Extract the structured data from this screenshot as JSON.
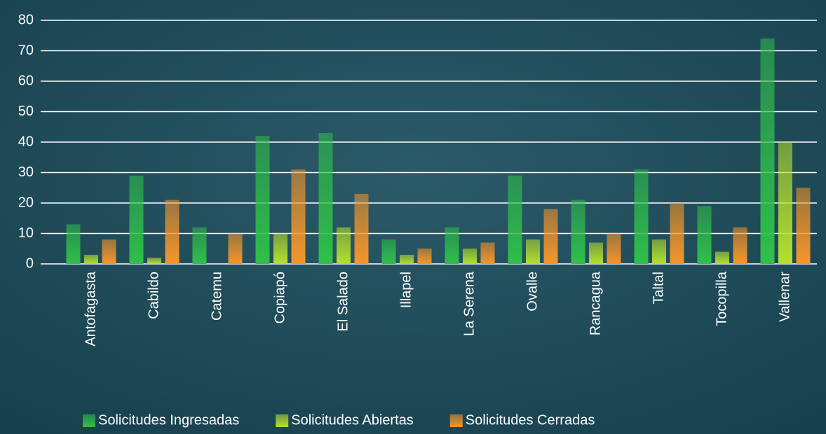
{
  "chart_data": {
    "type": "bar",
    "categories": [
      "Antofagasta",
      "Cabildo",
      "Catemu",
      "Copiapó",
      "El Salado",
      "Illapel",
      "La Serena",
      "Ovalle",
      "Rancagua",
      "Taltal",
      "Tocopilla",
      "Vallenar"
    ],
    "series": [
      {
        "name": "Solicitudes Ingresadas",
        "color": "#2fc04a",
        "values": [
          13,
          29,
          12,
          42,
          43,
          8,
          12,
          29,
          21,
          31,
          19,
          74
        ]
      },
      {
        "name": "Solicitudes Abiertas",
        "color": "#b5e02e",
        "values": [
          3,
          2,
          0,
          10,
          12,
          3,
          5,
          8,
          7,
          8,
          4,
          40
        ]
      },
      {
        "name": "Solicitudes Cerradas",
        "color": "#f7962a",
        "values": [
          8,
          21,
          10,
          31,
          23,
          5,
          7,
          18,
          10,
          20,
          12,
          25
        ]
      }
    ],
    "ylim": [
      0,
      80
    ],
    "yticks": [
      0,
      10,
      20,
      30,
      40,
      50,
      60,
      70,
      80
    ],
    "grid": true,
    "legend": "bottom"
  }
}
